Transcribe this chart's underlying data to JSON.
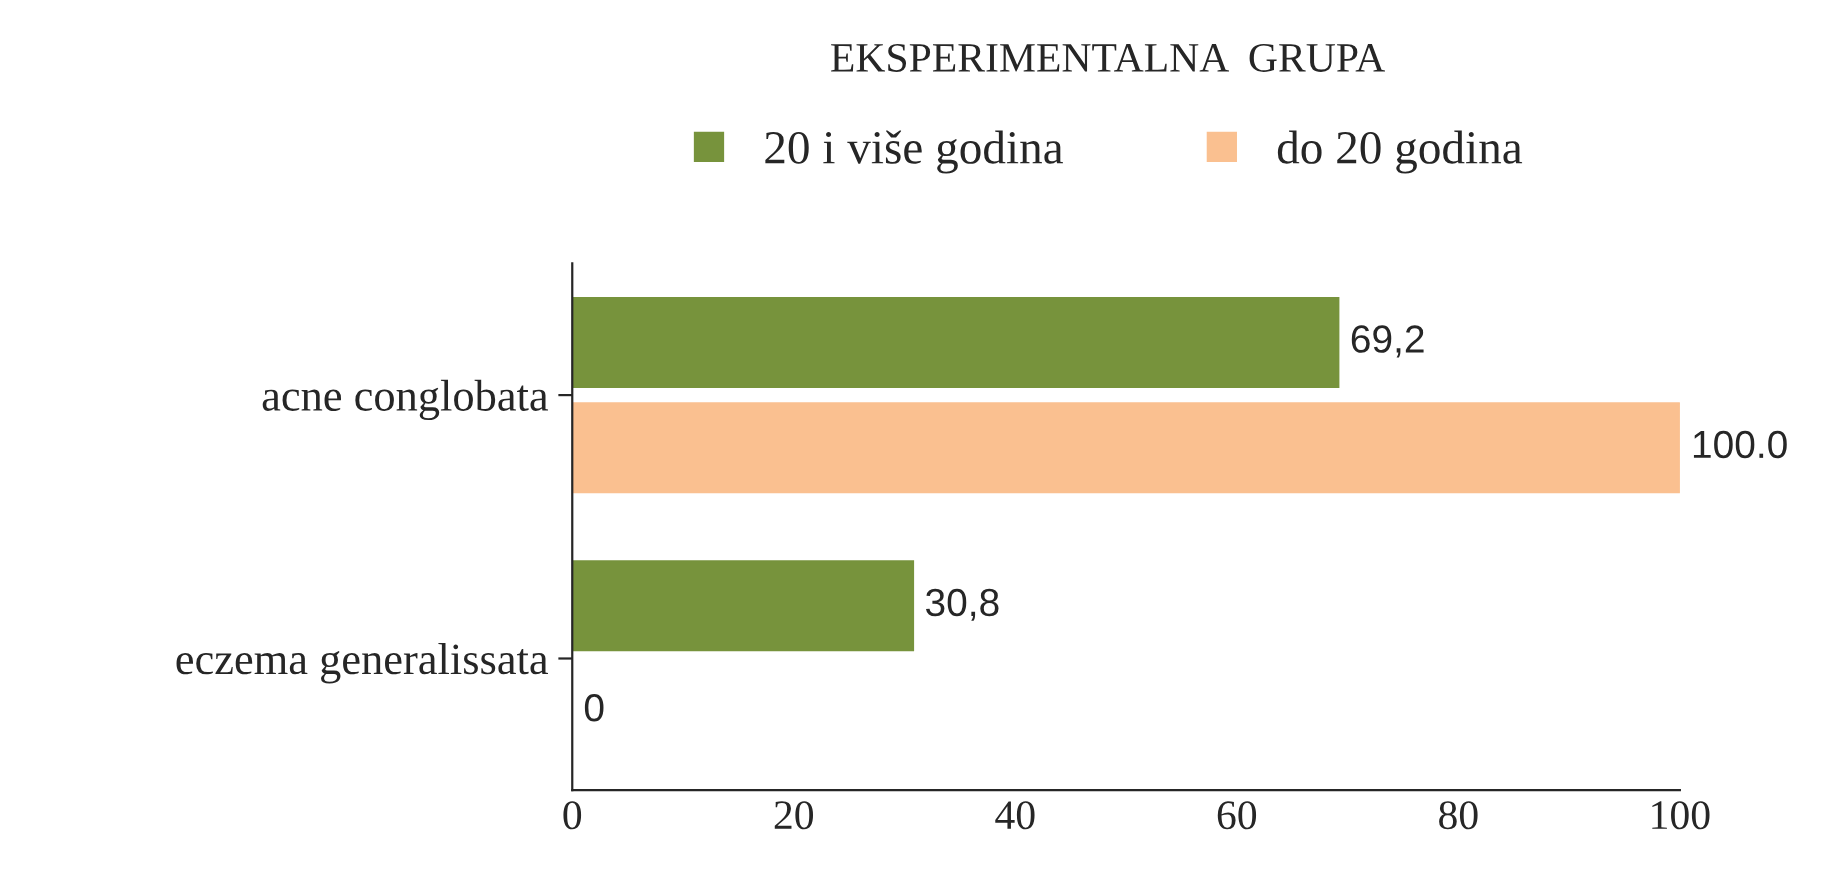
{
  "chart_data": {
    "type": "bar",
    "orientation": "horizontal",
    "title": "EKSPERIMENTALNA  GRUPA",
    "categories": [
      "acne conglobata",
      "eczema generalissata"
    ],
    "series": [
      {
        "name": "20 i više godina",
        "color": "#77933c",
        "values": [
          69.2,
          30.8
        ],
        "value_labels": [
          "69,2",
          "30,8"
        ]
      },
      {
        "name": "do 20 godina",
        "color": "#fac090",
        "values": [
          100.0,
          0
        ],
        "value_labels": [
          "100.0",
          "0"
        ]
      }
    ],
    "xlim": [
      0,
      100
    ],
    "xticks": [
      0,
      20,
      40,
      60,
      80,
      100
    ],
    "legend": "top"
  }
}
